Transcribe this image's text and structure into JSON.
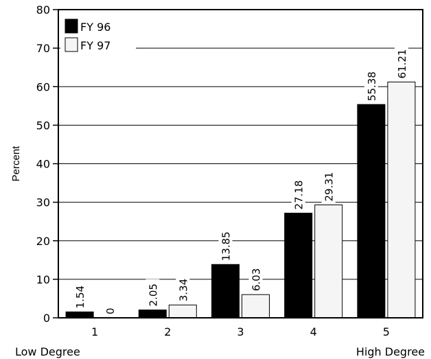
{
  "chart_data": {
    "type": "bar",
    "title": "",
    "xlabel": "",
    "ylabel": "Percent",
    "ylim": [
      0,
      80
    ],
    "yticks": [
      0,
      10,
      20,
      30,
      40,
      50,
      60,
      70,
      80
    ],
    "grid": true,
    "legend_position": "top-left",
    "categories": [
      "1",
      "2",
      "3",
      "4",
      "5"
    ],
    "x_end_labels": {
      "left": "Low Degree",
      "right": "High Degree"
    },
    "series": [
      {
        "name": "FY 96",
        "color": "#000000",
        "values": [
          1.54,
          2.05,
          13.85,
          27.18,
          55.38
        ],
        "value_labels": [
          "1.54",
          "2.05",
          "13.85",
          "27.18",
          "55.38"
        ]
      },
      {
        "name": "FY 97",
        "color": "#f5f5f5",
        "values": [
          0,
          3.34,
          6.03,
          29.31,
          61.21
        ],
        "value_labels": [
          "0",
          "3.34",
          "6.03",
          "29.31",
          "61.21"
        ]
      }
    ]
  }
}
